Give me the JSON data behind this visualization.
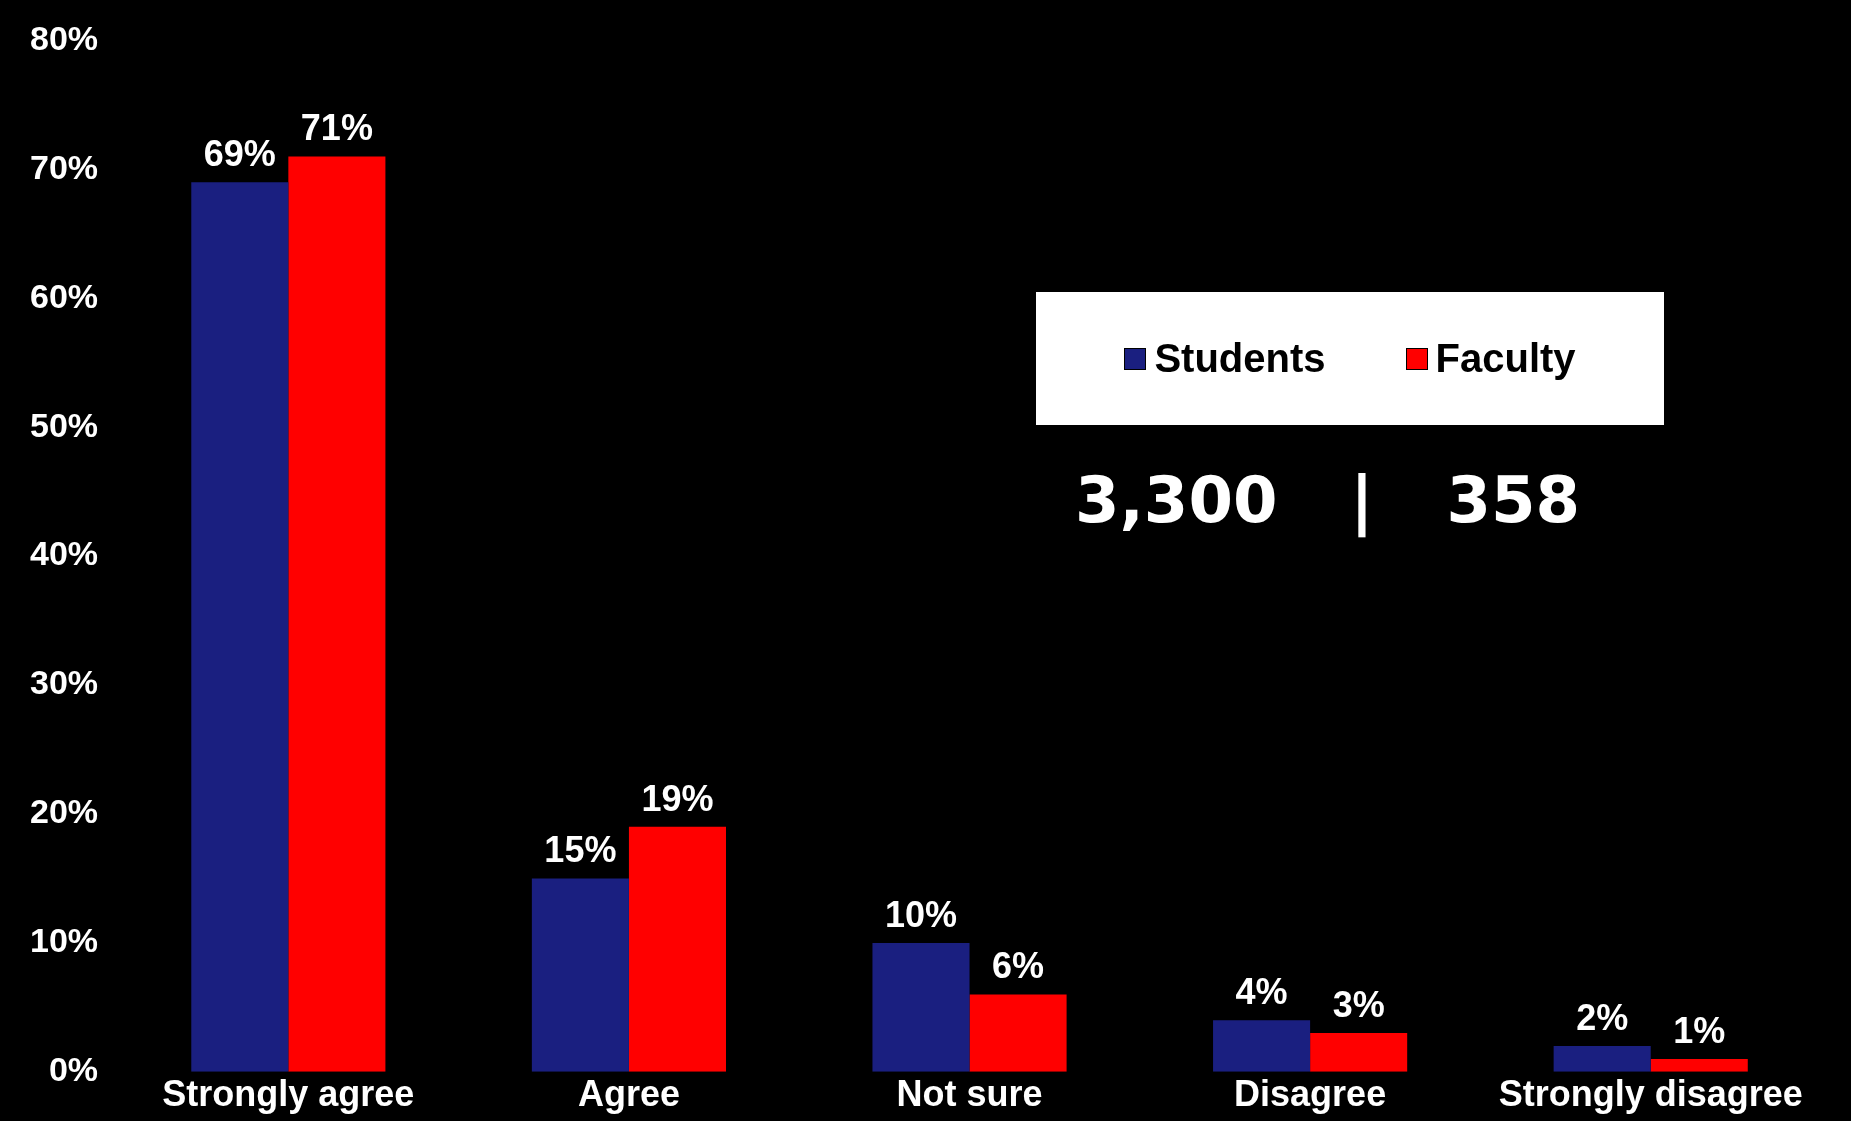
{
  "chart_data": {
    "type": "bar",
    "categories": [
      "Strongly agree",
      "Agree",
      "Not sure",
      "Disagree",
      "Strongly disagree"
    ],
    "series": [
      {
        "name": "Students",
        "color": "#1a1f80",
        "values": [
          69,
          15,
          10,
          4,
          2
        ],
        "value_labels": [
          "69%",
          "15%",
          "10%",
          "4%",
          "2%"
        ]
      },
      {
        "name": "Faculty",
        "color": "#ff0000",
        "values": [
          71,
          19,
          6,
          3,
          1
        ],
        "value_labels": [
          "71%",
          "19%",
          "6%",
          "3%",
          "1%"
        ]
      }
    ],
    "ylim": [
      0,
      80
    ],
    "yticks": [
      {
        "value": 0,
        "label": "0%"
      },
      {
        "value": 10,
        "label": "10%"
      },
      {
        "value": 20,
        "label": "20%"
      },
      {
        "value": 30,
        "label": "30%"
      },
      {
        "value": 40,
        "label": "40%"
      },
      {
        "value": 50,
        "label": "50%"
      },
      {
        "value": 60,
        "label": "60%"
      },
      {
        "value": 70,
        "label": "70%"
      },
      {
        "value": 80,
        "label": "80%"
      }
    ],
    "legend": "top right",
    "grid": false,
    "annotations": [
      "3,300",
      "|",
      "358"
    ]
  }
}
